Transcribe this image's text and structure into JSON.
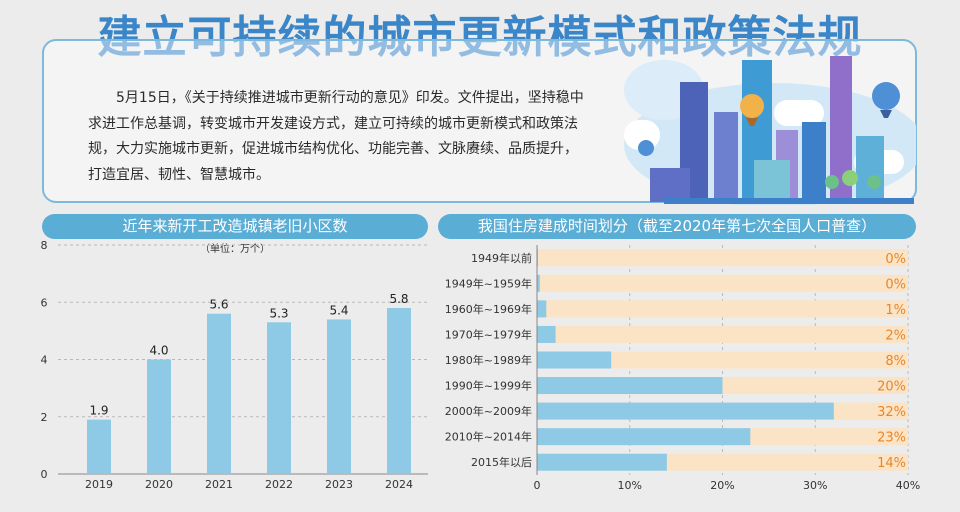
{
  "title": "建立可持续的城市更新模式和政策法规",
  "intro": "5月15日，《关于持续推进城市更新行动的意见》印发。文件提出，坚持稳中求进工作总基调，转变城市开发建设方式，建立可持续的城市更新模式和政策法规，大力实施城市更新，促进城市结构优化、功能完善、文脉赓续、品质提升，打造宜居、韧性、智慧城市。",
  "colors": {
    "accent": "#3a86c8",
    "bar": "#8ec9e6",
    "track": "#fbe4c6",
    "pct_text": "#e8862a",
    "header": "#5aaed6"
  },
  "chart_data": [
    {
      "type": "bar",
      "title": "近年来新开工改造城镇老旧小区数",
      "unit_label": "（单位：万个）",
      "categories": [
        "2019",
        "2020",
        "2021",
        "2022",
        "2023",
        "2024"
      ],
      "values": [
        1.9,
        4.0,
        5.6,
        5.3,
        5.4,
        5.8
      ],
      "value_labels": [
        "1.9",
        "4.0",
        "5.6",
        "5.3",
        "5.4",
        "5.8"
      ],
      "ylim": [
        0,
        8
      ],
      "yticks": [
        "0",
        "2",
        "4",
        "6",
        "8"
      ],
      "grid": true
    },
    {
      "type": "bar",
      "orientation": "horizontal",
      "title": "我国住房建成时间划分（截至2020年第七次全国人口普查）",
      "categories": [
        "1949年以前",
        "1949年~1959年",
        "1960年~1969年",
        "1970年~1979年",
        "1980年~1989年",
        "1990年~1999年",
        "2000年~2009年",
        "2010年~2014年",
        "2015年以后"
      ],
      "values": [
        0.1,
        0.3,
        1,
        2,
        8,
        20,
        32,
        23,
        14
      ],
      "value_labels": [
        "0%",
        "0%",
        "1%",
        "2%",
        "8%",
        "20%",
        "32%",
        "23%",
        "14%"
      ],
      "xlim": [
        0,
        40
      ],
      "xticks": [
        "0",
        "10%",
        "20%",
        "30%",
        "40%"
      ],
      "grid": true
    }
  ]
}
